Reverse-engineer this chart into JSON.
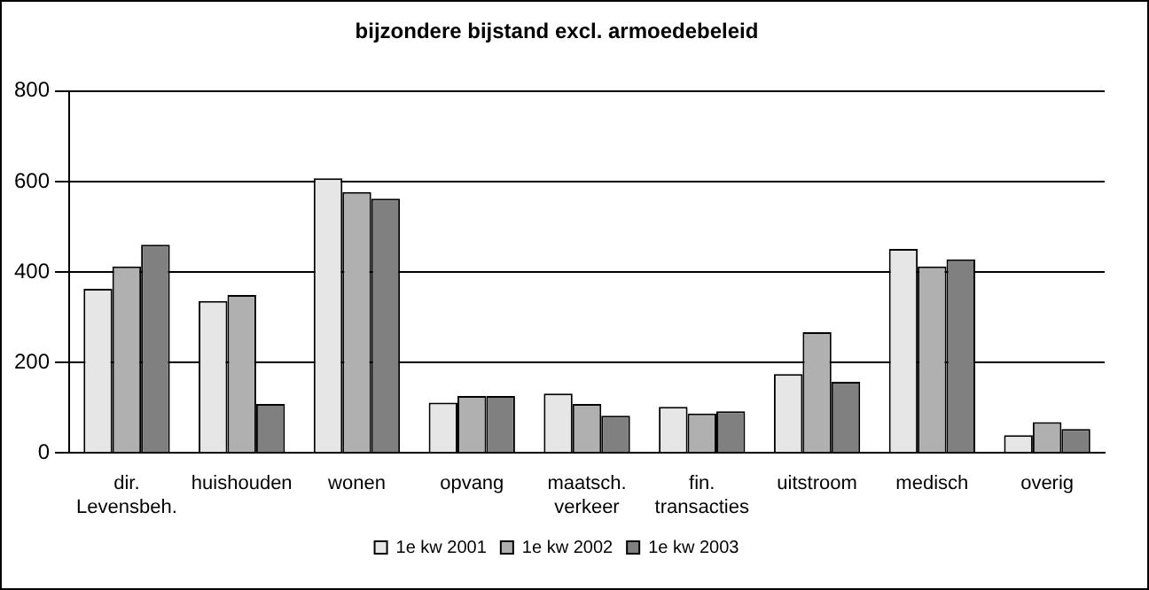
{
  "chart_data": {
    "type": "bar",
    "title": "bijzondere bijstand excl. armoedebeleid",
    "categories": [
      "dir.\nLevensbeh.",
      "huishouden",
      "wonen",
      "opvang",
      "maatsch.\nverkeer",
      "fin.\ntransacties",
      "uitstroom",
      "medisch",
      "overig"
    ],
    "series": [
      {
        "name": "1e kw 2001",
        "color": "#e6e6e6",
        "values": [
          363,
          336,
          607,
          111,
          131,
          102,
          174,
          451,
          39
        ]
      },
      {
        "name": "1e kw 2002",
        "color": "#b0b0b0",
        "values": [
          412,
          349,
          577,
          126,
          108,
          87,
          267,
          412,
          68
        ]
      },
      {
        "name": "1e kw 2003",
        "color": "#808080",
        "values": [
          460,
          108,
          562,
          126,
          82,
          92,
          157,
          428,
          53
        ]
      }
    ],
    "ylim": [
      0,
      800
    ],
    "yticks": [
      0,
      200,
      400,
      600,
      800
    ],
    "grid": "y",
    "legend": "bottom"
  }
}
